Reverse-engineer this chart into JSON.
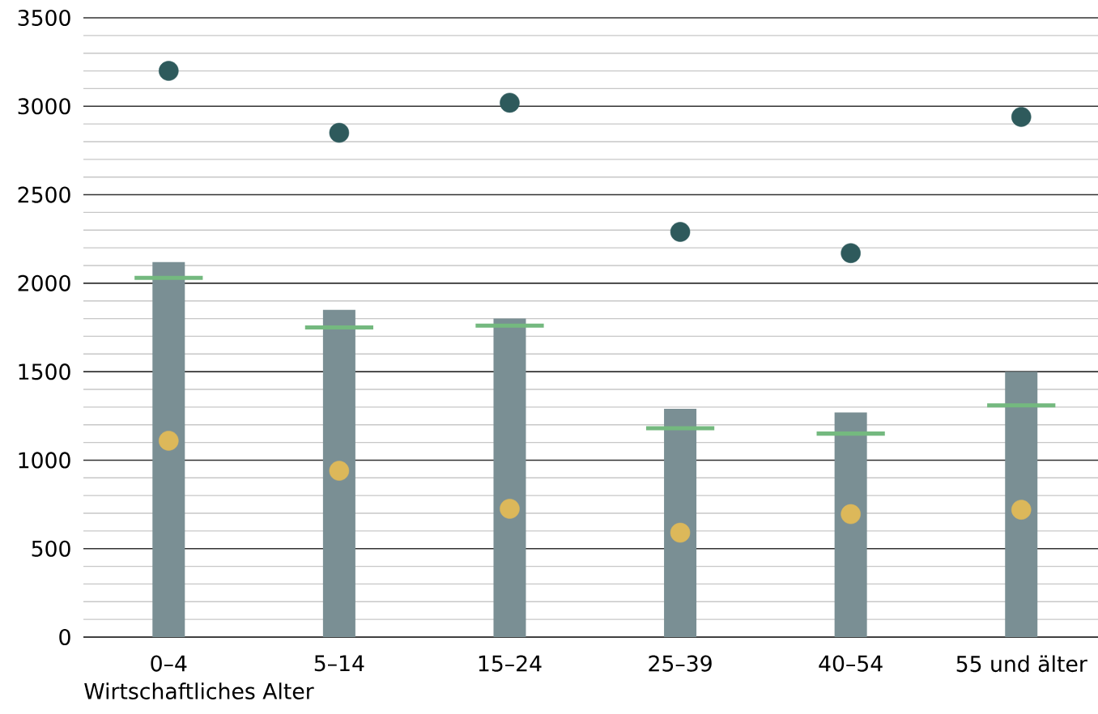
{
  "chart_data": {
    "type": "bar",
    "xlabel": "Wirtschaftliches Alter",
    "categories": [
      "0–4",
      "5–14",
      "15–24",
      "25–39",
      "40–54",
      "55 und älter"
    ],
    "series": [
      {
        "color": "#7a8f94",
        "values": [
          2120,
          1850,
          1800,
          1290,
          1270,
          1500
        ]
      },
      {
        "type": "scatter",
        "marker": "circle",
        "color": "#2e5a5c",
        "values": [
          3200,
          2850,
          3020,
          2290,
          2170,
          2940
        ]
      },
      {
        "type": "box",
        "color": "#74b97f",
        "boxes": [
          {
            "low": 2030,
            "q1": 2030,
            "median": 2030,
            "q3": 2030,
            "high": 2030
          },
          {
            "low": 1750,
            "q1": 1750,
            "median": 1750,
            "q3": 1750,
            "high": 1750
          },
          {
            "low": 1760,
            "q1": 1760,
            "median": 1760,
            "q3": 1760,
            "high": 1760
          },
          {
            "low": 1180,
            "q1": 1180,
            "median": 1180,
            "q3": 1180,
            "high": 1180
          },
          {
            "low": 1150,
            "q1": 1150,
            "median": 1150,
            "q3": 1150,
            "high": 1150
          },
          {
            "low": 1310,
            "q1": 1310,
            "median": 1310,
            "q3": 1310,
            "high": 1310
          }
        ]
      },
      {
        "type": "scatter",
        "marker": "circle",
        "color": "#dcb85a",
        "values": [
          1110,
          940,
          725,
          590,
          695,
          720
        ]
      }
    ],
    "ylim": [
      0,
      3500
    ],
    "yticks": [
      0,
      500,
      1000,
      1500,
      2000,
      2500,
      3000,
      3500
    ],
    "grid": "y"
  }
}
